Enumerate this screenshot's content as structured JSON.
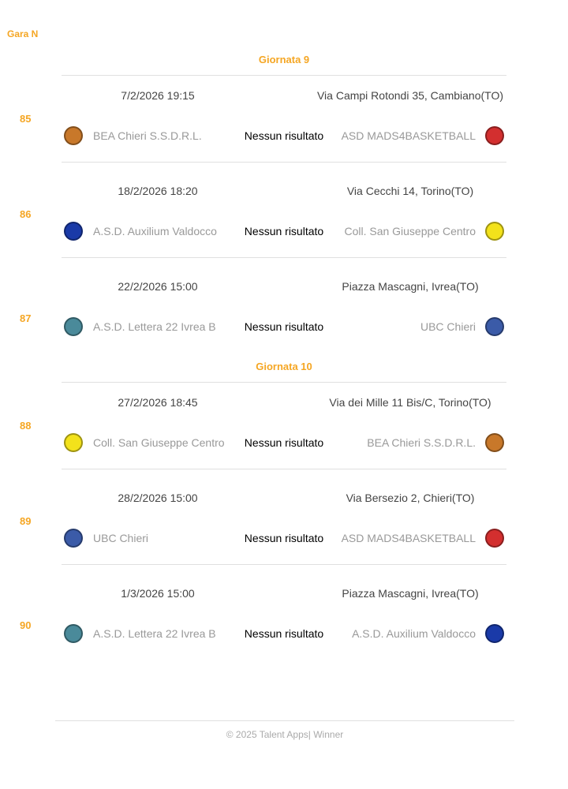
{
  "header": {
    "game_label": "Gara N"
  },
  "rounds": [
    {
      "title": "Giornata 9",
      "matches": [
        {
          "number": 85,
          "datetime": "7/2/2026 19:15",
          "address": "Via Campi Rotondi 35, Cambiano(TO)",
          "home": "BEA Chieri S.S.D.R.L.",
          "result": "Nessun risultato",
          "away": "ASD MADS4BASKETBALL"
        },
        {
          "number": 86,
          "datetime": "18/2/2026 18:20",
          "address": "Via Cecchi 14, Torino(TO)",
          "home": "A.S.D. Auxilium Valdocco",
          "result": "Nessun risultato",
          "away": "Coll. San Giuseppe Centro"
        },
        {
          "number": 87,
          "datetime": "22/2/2026 15:00",
          "address": "Piazza Mascagni, Ivrea(TO)",
          "home": "A.S.D. Lettera 22 Ivrea B",
          "result": "Nessun risultato",
          "away": "UBC Chieri"
        }
      ]
    },
    {
      "title": "Giornata 10",
      "matches": [
        {
          "number": 88,
          "datetime": "27/2/2026 18:45",
          "address": "Via dei Mille 11 Bis/C, Torino(TO)",
          "home": "Coll. San Giuseppe Centro",
          "result": "Nessun risultato",
          "away": "BEA Chieri S.S.D.R.L."
        },
        {
          "number": 89,
          "datetime": "28/2/2026 15:00",
          "address": "Via Bersezio 2, Chieri(TO)",
          "home": "UBC Chieri",
          "result": "Nessun risultato",
          "away": "ASD MADS4BASKETBALL"
        },
        {
          "number": 90,
          "datetime": "1/3/2026 15:00",
          "address": "Piazza Mascagni, Ivrea(TO)",
          "home": "A.S.D. Lettera 22 Ivrea B",
          "result": "Nessun risultato",
          "away": "A.S.D. Auxilium Valdocco"
        }
      ]
    }
  ],
  "footer": "© 2025 Talent Apps| Winner"
}
